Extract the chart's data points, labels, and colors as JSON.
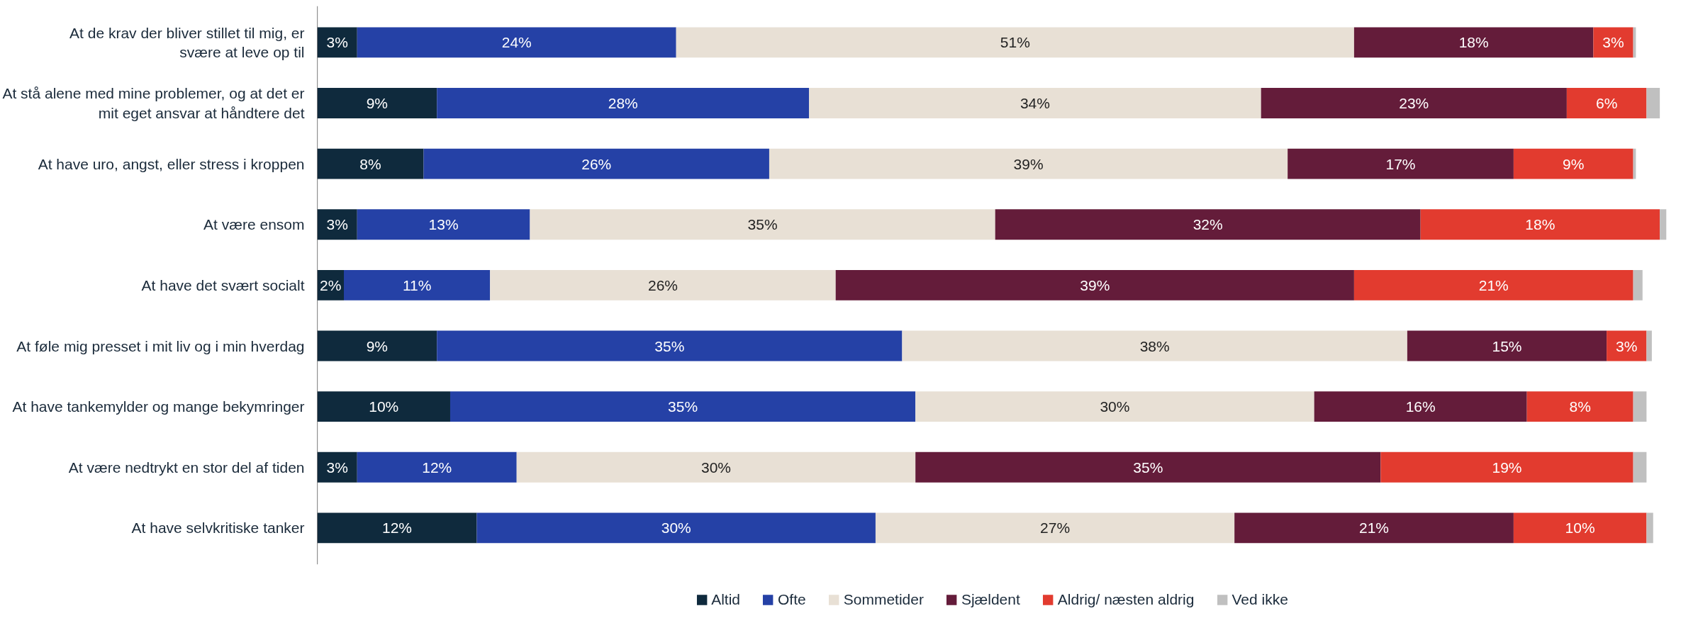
{
  "chart_data": {
    "type": "bar",
    "orientation": "horizontal",
    "stacked": true,
    "legend": "bottom",
    "grid": false,
    "categories": [
      "At de krav der bliver stillet til mig, er svære at leve op til",
      "At stå alene med mine problemer, og at det er mit eget ansvar at håndtere det",
      "At have uro, angst, eller stress i kroppen",
      "At være ensom",
      "At have det svært socialt",
      "At føle mig presset i mit liv og i min hverdag",
      "At have tankemylder og mange bekymringer",
      "At være nedtrykt en stor del af tiden",
      "At have selvkritiske tanker"
    ],
    "series": [
      {
        "name": "Altid",
        "color": "#0f2a3d",
        "values": [
          3,
          9,
          8,
          3,
          2,
          9,
          10,
          3,
          12
        ],
        "value_labels": [
          "3%",
          "9%",
          "8%",
          "3%",
          "2%",
          "9%",
          "10%",
          "3%",
          "12%"
        ]
      },
      {
        "name": "Ofte",
        "color": "#2541a6",
        "values": [
          24,
          28,
          26,
          13,
          11,
          35,
          35,
          12,
          30
        ],
        "value_labels": [
          "24%",
          "28%",
          "26%",
          "13%",
          "11%",
          "35%",
          "35%",
          "12%",
          "30%"
        ]
      },
      {
        "name": "Sommetider",
        "color": "#e8e0d5",
        "values": [
          51,
          34,
          39,
          35,
          26,
          38,
          30,
          30,
          27
        ],
        "value_labels": [
          "51%",
          "34%",
          "39%",
          "35%",
          "26%",
          "38%",
          "30%",
          "30%",
          "27%"
        ]
      },
      {
        "name": "Sjældent",
        "color": "#641c3a",
        "values": [
          18,
          23,
          17,
          32,
          39,
          15,
          16,
          35,
          21
        ],
        "value_labels": [
          "18%",
          "23%",
          "17%",
          "32%",
          "39%",
          "15%",
          "16%",
          "35%",
          "21%"
        ]
      },
      {
        "name": "Aldrig/ næsten aldrig",
        "color": "#e23b2f",
        "values": [
          3,
          6,
          9,
          18,
          21,
          3,
          8,
          19,
          10
        ],
        "value_labels": [
          "3%",
          "6%",
          "9%",
          "18%",
          "21%",
          "3%",
          "8%",
          "19%",
          "10%"
        ]
      },
      {
        "name": "Ved ikke",
        "color": "#c0c0c0",
        "values": [
          0.2,
          1,
          0.2,
          0.5,
          0.7,
          0.4,
          1,
          1,
          0.5
        ],
        "value_labels": [
          null,
          null,
          null,
          null,
          null,
          null,
          null,
          null,
          null
        ]
      }
    ]
  }
}
